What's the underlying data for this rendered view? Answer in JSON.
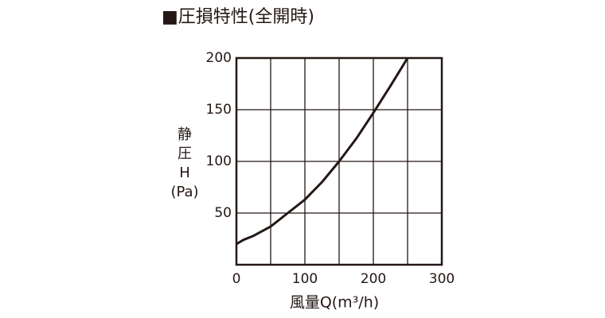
{
  "chart_data": {
    "type": "line",
    "title": "■圧損特性(全開時)",
    "y_label_lines": [
      "静",
      "圧",
      "H",
      "(Pa)"
    ],
    "x_label": "風量Q(m³/h)",
    "x": [
      0,
      10,
      25,
      50,
      75,
      100,
      125,
      150,
      175,
      200,
      225,
      250
    ],
    "series": [
      {
        "name": "静圧",
        "color": "#231815",
        "values": [
          20,
          24,
          28,
          37,
          50,
          63,
          80,
          100,
          122,
          147,
          173,
          200
        ]
      }
    ],
    "xlim": [
      0,
      300
    ],
    "xticks": [
      0,
      100,
      200,
      300
    ],
    "xgrid": [
      50,
      100,
      150,
      200,
      250
    ],
    "ylim": [
      0,
      200
    ],
    "yticks": [
      50,
      100,
      150,
      200
    ],
    "grid": true
  }
}
